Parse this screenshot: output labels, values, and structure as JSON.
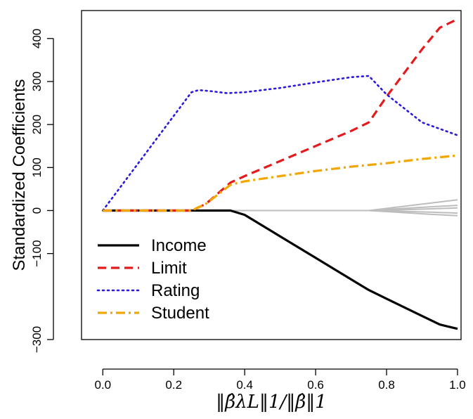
{
  "chart_data": {
    "type": "line",
    "title": "",
    "xlabel": "‖β̂λL‖1/‖β̂‖1",
    "ylabel": "Standardized Coefficients",
    "xlim": [
      -0.06,
      1.01
    ],
    "ylim": [
      -300,
      465
    ],
    "x_ticks": [
      0.0,
      0.2,
      0.4,
      0.6,
      0.8,
      1.0
    ],
    "x_tick_labels": [
      "0.0",
      "0.2",
      "0.4",
      "0.6",
      "0.8",
      "1.0"
    ],
    "y_ticks": [
      -300,
      -100,
      0,
      100,
      200,
      300,
      400
    ],
    "y_tick_labels": [
      "−300",
      "−100",
      "0",
      "100",
      "200",
      "300",
      "400"
    ],
    "grid": false,
    "legend_position": "bottom-left",
    "series": [
      {
        "name": "Income",
        "color": "#000000",
        "style": "solid",
        "x": [
          0.0,
          0.36,
          0.4,
          0.5,
          0.6,
          0.7,
          0.75,
          0.8,
          0.9,
          0.95,
          1.0
        ],
        "y": [
          0,
          0,
          -10,
          -60,
          -110,
          -160,
          -185,
          -205,
          -245,
          -265,
          -275
        ]
      },
      {
        "name": "Limit",
        "color": "#e41a1c",
        "style": "dashed",
        "x": [
          0.0,
          0.25,
          0.29,
          0.36,
          0.4,
          0.5,
          0.6,
          0.7,
          0.75,
          0.8,
          0.9,
          0.95,
          1.0
        ],
        "y": [
          0,
          0,
          15,
          65,
          80,
          115,
          150,
          185,
          205,
          265,
          375,
          425,
          445
        ]
      },
      {
        "name": "Rating",
        "color": "#2a1ae0",
        "style": "dotted",
        "x": [
          0.0,
          0.25,
          0.27,
          0.3,
          0.35,
          0.4,
          0.5,
          0.6,
          0.7,
          0.75,
          0.8,
          0.9,
          1.0
        ],
        "y": [
          0,
          275,
          280,
          278,
          273,
          275,
          285,
          298,
          310,
          313,
          270,
          205,
          175
        ]
      },
      {
        "name": "Student",
        "color": "#f2a700",
        "style": "dashdot",
        "x": [
          0.0,
          0.25,
          0.29,
          0.36,
          0.4,
          0.5,
          0.6,
          0.7,
          0.8,
          0.9,
          1.0
        ],
        "y": [
          0,
          0,
          15,
          60,
          68,
          80,
          92,
          102,
          110,
          120,
          128
        ]
      }
    ],
    "other_series": [
      {
        "color": "#bdbdbd",
        "x": [
          0.0,
          0.75,
          0.85,
          0.93,
          1.0
        ],
        "y": [
          0,
          0,
          10,
          18,
          25
        ]
      },
      {
        "color": "#bdbdbd",
        "x": [
          0.0,
          0.75,
          0.85,
          0.93,
          1.0
        ],
        "y": [
          0,
          0,
          5,
          9,
          12
        ]
      },
      {
        "color": "#bdbdbd",
        "x": [
          0.0,
          0.75,
          0.85,
          0.93,
          1.0
        ],
        "y": [
          0,
          0,
          2,
          4,
          6
        ]
      },
      {
        "color": "#bdbdbd",
        "x": [
          0.0,
          0.75,
          0.85,
          0.93,
          1.0
        ],
        "y": [
          0,
          0,
          -2,
          -4,
          -6
        ]
      },
      {
        "color": "#bdbdbd",
        "x": [
          0.0,
          0.75,
          0.85,
          0.93,
          1.0
        ],
        "y": [
          0,
          0,
          -5,
          -9,
          -12
        ]
      }
    ]
  }
}
